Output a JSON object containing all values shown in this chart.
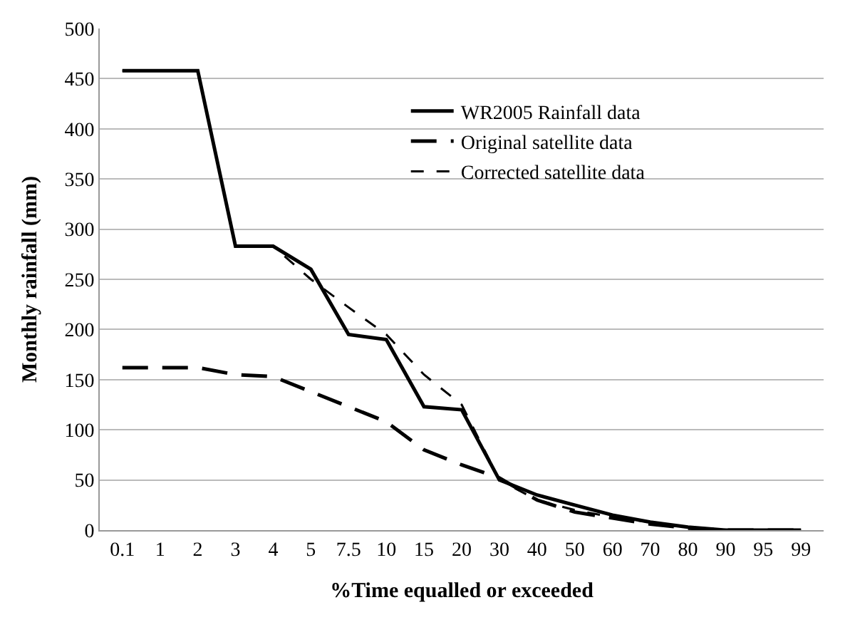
{
  "chart_data": {
    "type": "line",
    "xlabel": "%Time equalled or exceeded",
    "ylabel": "Monthly rainfall (mm)",
    "categories": [
      "0.1",
      "1",
      "2",
      "3",
      "4",
      "5",
      "7.5",
      "10",
      "15",
      "20",
      "30",
      "40",
      "50",
      "60",
      "70",
      "80",
      "90",
      "95",
      "99"
    ],
    "ylim": [
      0,
      500
    ],
    "yticks": [
      0,
      50,
      100,
      150,
      200,
      250,
      300,
      350,
      400,
      450,
      500
    ],
    "grid": "y",
    "legend": "top right",
    "marker": "none",
    "series": [
      {
        "name": "WR2005 Rainfall data",
        "color": "#000000",
        "line_style": "solid",
        "values": [
          458,
          458,
          458,
          283,
          283,
          260,
          195,
          190,
          123,
          120,
          50,
          35,
          25,
          15,
          8,
          3,
          0,
          0,
          0
        ]
      },
      {
        "name": "Original satellite data",
        "color": "#000000",
        "line_style": "longdash",
        "values": [
          162,
          162,
          162,
          155,
          153,
          138,
          123,
          108,
          80,
          65,
          52,
          30,
          18,
          12,
          6,
          2,
          0,
          0,
          0
        ]
      },
      {
        "name": "Corrected satellite data",
        "color": "#000000",
        "line_style": "dashed",
        "values": [
          458,
          458,
          458,
          283,
          283,
          250,
          222,
          195,
          155,
          125,
          50,
          30,
          20,
          13,
          8,
          2,
          0,
          0,
          0
        ]
      }
    ]
  }
}
